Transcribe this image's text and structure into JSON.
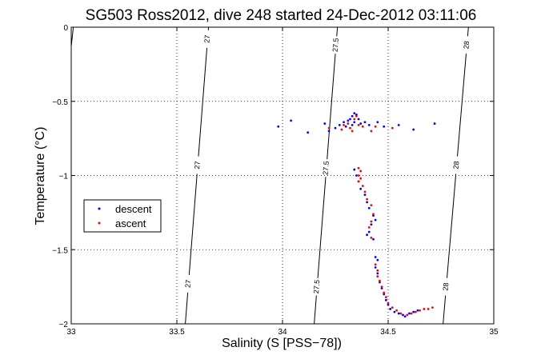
{
  "chart_data": {
    "type": "scatter",
    "title": "SG503 Ross2012, dive 248 started 24-Dec-2012 03:11:06",
    "xlabel": "Salinity (S [PSS−78])",
    "ylabel": "Temperature (°C)",
    "xlim": [
      33,
      35
    ],
    "ylim": [
      -2,
      0
    ],
    "x_ticks": [
      33,
      33.5,
      34,
      34.5,
      35
    ],
    "x_tick_labels": [
      "33",
      "33.5",
      "34",
      "34.5",
      "35"
    ],
    "y_ticks": [
      0,
      -0.5,
      -1,
      -1.5,
      -2
    ],
    "y_tick_labels": [
      "0",
      "−0.5",
      "−1",
      "−1.5",
      "−2"
    ],
    "grid": true,
    "grid_style": "dotted",
    "legend_position": "left-middle",
    "contours": [
      {
        "level": "27",
        "points": [
          [
            33.01,
            -0.15
          ],
          [
            33.05,
            0
          ],
          [
            33.1,
            0.2
          ]
        ],
        "labels": [
          {
            "x": 33.63,
            "y": -0.08
          },
          {
            "x": 33.58,
            "y": -0.93
          },
          {
            "x": 33.55,
            "y": -1.73
          }
        ],
        "line": [
          [
            33.54,
            -2
          ],
          [
            33.65,
            0
          ]
        ]
      },
      {
        "level": "27.5",
        "line": [
          [
            34.15,
            -2
          ],
          [
            34.26,
            0
          ]
        ],
        "labels": [
          {
            "x": 34.25,
            "y": -0.12
          },
          {
            "x": 34.2,
            "y": -0.95
          },
          {
            "x": 34.17,
            "y": -1.75
          }
        ]
      },
      {
        "level": "28",
        "line": [
          [
            34.76,
            -2
          ],
          [
            34.88,
            0
          ]
        ],
        "labels": [
          {
            "x": 34.87,
            "y": -0.12
          },
          {
            "x": 34.82,
            "y": -0.93
          },
          {
            "x": 34.78,
            "y": -1.75
          }
        ]
      }
    ],
    "contour_left_edge": [
      [
        33.0,
        -0.13
      ],
      [
        33.01,
        0
      ]
    ],
    "series": [
      {
        "name": "descent",
        "color": "#0000ff",
        "marker": "dot",
        "points": [
          [
            33.98,
            -0.67
          ],
          [
            34.04,
            -0.63
          ],
          [
            34.12,
            -0.71
          ],
          [
            34.2,
            -0.65
          ],
          [
            34.22,
            -0.7
          ],
          [
            34.25,
            -0.68
          ],
          [
            34.27,
            -0.66
          ],
          [
            34.29,
            -0.64
          ],
          [
            34.3,
            -0.67
          ],
          [
            34.31,
            -0.63
          ],
          [
            34.32,
            -0.62
          ],
          [
            34.33,
            -0.6
          ],
          [
            34.34,
            -0.58
          ],
          [
            34.35,
            -0.59
          ],
          [
            34.36,
            -0.62
          ],
          [
            34.34,
            -0.64
          ],
          [
            34.33,
            -0.66
          ],
          [
            34.37,
            -0.65
          ],
          [
            34.39,
            -0.64
          ],
          [
            34.41,
            -0.66
          ],
          [
            34.45,
            -0.64
          ],
          [
            34.48,
            -0.67
          ],
          [
            34.55,
            -0.66
          ],
          [
            34.62,
            -0.69
          ],
          [
            34.72,
            -0.65
          ],
          [
            34.34,
            -0.96
          ],
          [
            34.35,
            -1.0
          ],
          [
            34.36,
            -1.04
          ],
          [
            34.37,
            -1.09
          ],
          [
            34.39,
            -1.13
          ],
          [
            34.4,
            -1.18
          ],
          [
            34.41,
            -1.22
          ],
          [
            34.43,
            -1.27
          ],
          [
            34.44,
            -1.3
          ],
          [
            34.42,
            -1.33
          ],
          [
            34.41,
            -1.38
          ],
          [
            34.4,
            -1.4
          ],
          [
            34.43,
            -1.43
          ],
          [
            34.44,
            -1.55
          ],
          [
            34.45,
            -1.57
          ],
          [
            34.44,
            -1.62
          ],
          [
            34.45,
            -1.66
          ],
          [
            34.46,
            -1.72
          ],
          [
            34.47,
            -1.76
          ],
          [
            34.48,
            -1.8
          ],
          [
            34.49,
            -1.84
          ],
          [
            34.5,
            -1.87
          ],
          [
            34.51,
            -1.9
          ],
          [
            34.53,
            -1.92
          ],
          [
            34.55,
            -1.93
          ],
          [
            34.57,
            -1.94
          ],
          [
            34.58,
            -1.95
          ],
          [
            34.6,
            -1.93
          ],
          [
            34.62,
            -1.92
          ],
          [
            34.64,
            -1.91
          ]
        ]
      },
      {
        "name": "ascent",
        "color": "#ff0000",
        "marker": "dot",
        "points": [
          [
            34.22,
            -0.68
          ],
          [
            34.28,
            -0.69
          ],
          [
            34.29,
            -0.66
          ],
          [
            34.31,
            -0.65
          ],
          [
            34.33,
            -0.7
          ],
          [
            34.34,
            -0.62
          ],
          [
            34.35,
            -0.6
          ],
          [
            34.36,
            -0.66
          ],
          [
            34.32,
            -0.68
          ],
          [
            34.38,
            -0.67
          ],
          [
            34.42,
            -0.7
          ],
          [
            34.44,
            -0.67
          ],
          [
            34.52,
            -0.68
          ],
          [
            34.36,
            -0.95
          ],
          [
            34.37,
            -0.97
          ],
          [
            34.36,
            -1.0
          ],
          [
            34.37,
            -1.02
          ],
          [
            34.36,
            -1.04
          ],
          [
            34.38,
            -1.07
          ],
          [
            34.39,
            -1.11
          ],
          [
            34.4,
            -1.16
          ],
          [
            34.42,
            -1.2
          ],
          [
            34.43,
            -1.26
          ],
          [
            34.42,
            -1.31
          ],
          [
            34.41,
            -1.35
          ],
          [
            34.42,
            -1.42
          ],
          [
            34.44,
            -1.6
          ],
          [
            34.45,
            -1.64
          ],
          [
            34.45,
            -1.68
          ],
          [
            34.46,
            -1.71
          ],
          [
            34.47,
            -1.75
          ],
          [
            34.48,
            -1.79
          ],
          [
            34.49,
            -1.82
          ],
          [
            34.5,
            -1.86
          ],
          [
            34.52,
            -1.89
          ],
          [
            34.54,
            -1.91
          ],
          [
            34.56,
            -1.93
          ],
          [
            34.59,
            -1.94
          ],
          [
            34.61,
            -1.93
          ],
          [
            34.63,
            -1.92
          ],
          [
            34.65,
            -1.91
          ],
          [
            34.67,
            -1.9
          ],
          [
            34.69,
            -1.9
          ],
          [
            34.71,
            -1.89
          ]
        ]
      }
    ]
  }
}
